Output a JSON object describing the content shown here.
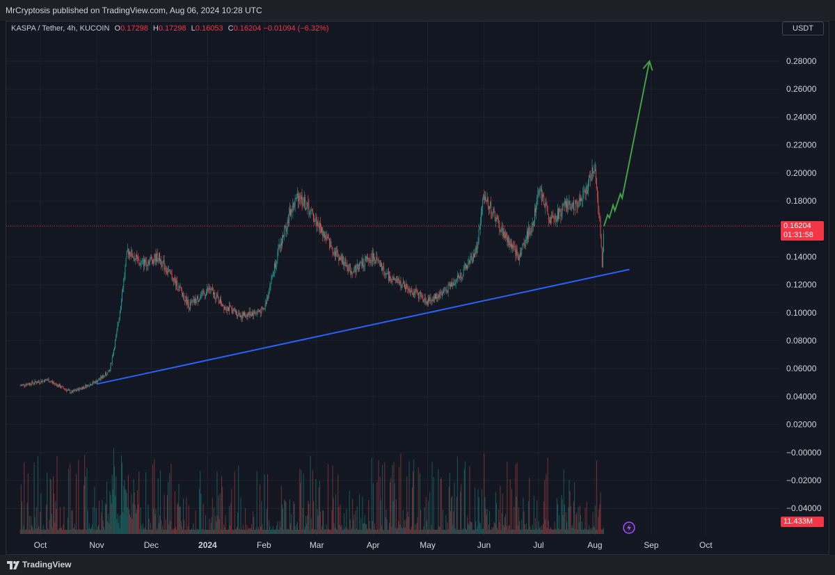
{
  "publisher": "MrCryptosis published on TradingView.com, Aug 06, 2024 10:28 UTC",
  "legend": {
    "symbol": "KASPA / Tether, 4h, KUCOIN",
    "open_key": "O",
    "open": "0.17298",
    "high_key": "H",
    "high": "0.17298",
    "low_key": "L",
    "low": "0.16053",
    "close_key": "C",
    "close": "0.16204",
    "change": "−0.01094 (−6.32%)"
  },
  "currency": "USDT",
  "price_tag": {
    "price": "0.16204",
    "countdown": "01:31:58"
  },
  "volume_tag": "11.433M",
  "footer": {
    "brand": "TradingView"
  },
  "colors": {
    "up": "#26a69a",
    "down": "#ef5350",
    "trendline": "#2962ff",
    "arrow": "#43a047",
    "accent": "#f23645",
    "flash": "#a64dff"
  },
  "chart_data": {
    "type": "candlestick",
    "interval": "4h",
    "x_ticks": [
      "Oct",
      "Nov",
      "Dec",
      "2024",
      "Feb",
      "Mar",
      "Apr",
      "May",
      "Jun",
      "Jul",
      "Aug",
      "Sep",
      "Oct"
    ],
    "y_ticks": [
      "0.28000",
      "0.26000",
      "0.24000",
      "0.22000",
      "0.20000",
      "0.18000",
      "0.14000",
      "0.12000",
      "0.10000",
      "0.08000",
      "0.06000",
      "0.04000",
      "0.02000",
      "−0.00000",
      "−0.02000",
      "−0.04000"
    ],
    "ylim": [
      -0.04,
      0.28
    ],
    "grid": true,
    "price_path": [
      [
        "2023-09-20",
        0.048
      ],
      [
        "2023-10-05",
        0.052
      ],
      [
        "2023-10-18",
        0.043
      ],
      [
        "2023-11-01",
        0.051
      ],
      [
        "2023-11-08",
        0.058
      ],
      [
        "2023-11-12",
        0.085
      ],
      [
        "2023-11-18",
        0.145
      ],
      [
        "2023-11-25",
        0.135
      ],
      [
        "2023-12-05",
        0.14
      ],
      [
        "2023-12-15",
        0.12
      ],
      [
        "2023-12-22",
        0.105
      ],
      [
        "2024-01-02",
        0.117
      ],
      [
        "2024-01-10",
        0.105
      ],
      [
        "2024-01-20",
        0.098
      ],
      [
        "2024-02-01",
        0.102
      ],
      [
        "2024-02-08",
        0.14
      ],
      [
        "2024-02-15",
        0.17
      ],
      [
        "2024-02-20",
        0.185
      ],
      [
        "2024-03-01",
        0.165
      ],
      [
        "2024-03-10",
        0.145
      ],
      [
        "2024-03-20",
        0.13
      ],
      [
        "2024-04-01",
        0.14
      ],
      [
        "2024-04-10",
        0.125
      ],
      [
        "2024-04-20",
        0.118
      ],
      [
        "2024-05-01",
        0.108
      ],
      [
        "2024-05-10",
        0.115
      ],
      [
        "2024-05-20",
        0.128
      ],
      [
        "2024-05-28",
        0.145
      ],
      [
        "2024-06-01",
        0.185
      ],
      [
        "2024-06-10",
        0.16
      ],
      [
        "2024-06-20",
        0.14
      ],
      [
        "2024-06-28",
        0.165
      ],
      [
        "2024-07-01",
        0.19
      ],
      [
        "2024-07-08",
        0.165
      ],
      [
        "2024-07-15",
        0.175
      ],
      [
        "2024-07-25",
        0.18
      ],
      [
        "2024-08-01",
        0.205
      ],
      [
        "2024-08-04",
        0.16
      ],
      [
        "2024-08-05",
        0.128
      ],
      [
        "2024-08-06",
        0.162
      ]
    ],
    "trendline": [
      [
        "2023-11-01",
        0.049
      ],
      [
        "2024-08-20",
        0.131
      ]
    ],
    "projection": [
      [
        "2024-08-06",
        0.162
      ],
      [
        "2024-08-08",
        0.17
      ],
      [
        "2024-08-09",
        0.168
      ],
      [
        "2024-08-11",
        0.177
      ],
      [
        "2024-08-12",
        0.173
      ],
      [
        "2024-08-15",
        0.185
      ],
      [
        "2024-08-16",
        0.182
      ],
      [
        "2024-08-31",
        0.28
      ]
    ],
    "last_price": 0.16204,
    "last_volume": "11.433M"
  }
}
